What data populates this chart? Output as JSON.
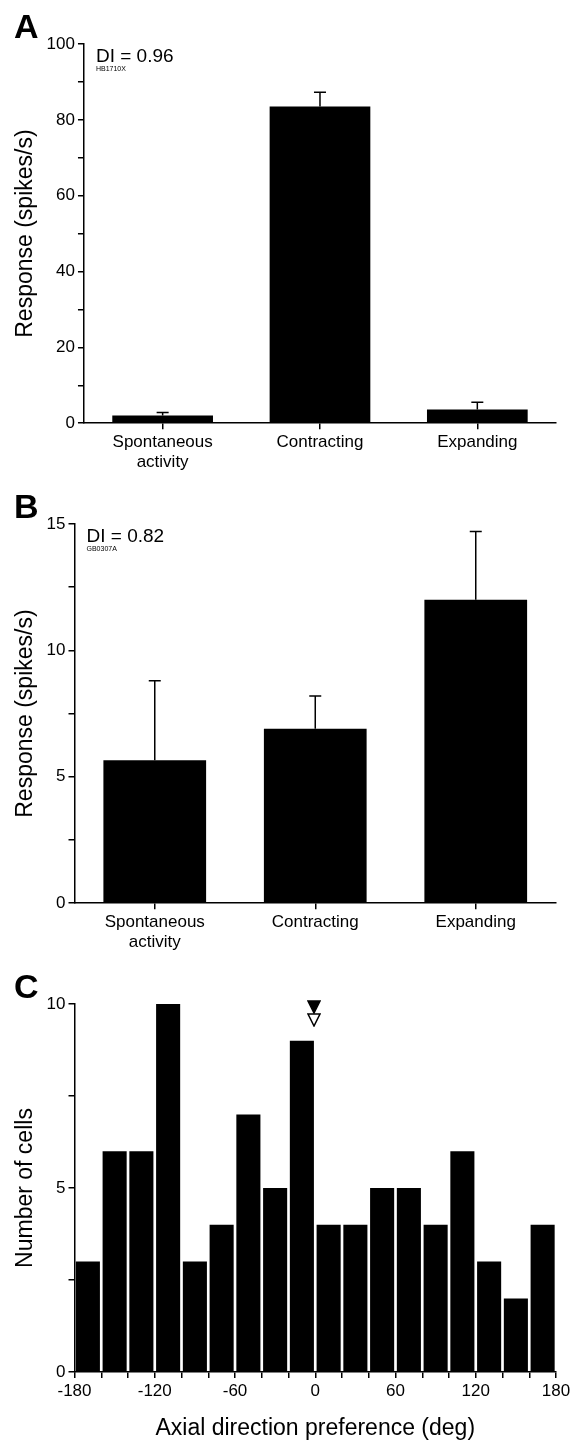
{
  "chart_data": [
    {
      "type": "bar",
      "categories": [
        "Spontaneous\nactivity",
        "Contracting",
        "Expanding"
      ],
      "values": [
        2.0,
        83.5,
        3.6
      ],
      "color": "#000000",
      "errors": [
        [
          2.0,
          2.8
        ],
        [
          83.5,
          87.3
        ],
        [
          3.6,
          5.5
        ]
      ],
      "ylabel": "Response (spikes/s)",
      "ylim": [
        0,
        100
      ],
      "yticks": [
        0,
        {
          "value": 10,
          "label": null
        },
        20,
        {
          "value": 30,
          "label": null
        },
        40,
        {
          "value": 50,
          "label": null
        },
        60,
        {
          "value": 70,
          "label": null
        },
        80,
        {
          "value": 90,
          "label": null
        },
        100
      ],
      "annotations": [
        "A",
        "DI = 0.96",
        "HB1710X"
      ],
      "grid": false,
      "legend": false
    },
    {
      "type": "bar",
      "categories": [
        "Spontaneous\nactivity",
        "Contracting",
        "Expanding"
      ],
      "values": [
        5.65,
        6.9,
        12.0
      ],
      "color": "#000000",
      "errors": [
        [
          5.65,
          8.8
        ],
        [
          6.9,
          8.2
        ],
        [
          12.0,
          14.7
        ]
      ],
      "ylabel": "Response (spikes/s)",
      "ylim": [
        0,
        15
      ],
      "yticks": [
        0,
        {
          "value": 2.5,
          "label": null
        },
        5,
        {
          "value": 7.5,
          "label": null
        },
        10,
        {
          "value": 12.5,
          "label": null
        },
        15
      ],
      "annotations": [
        "B",
        "DI = 0.82",
        "GB0307A"
      ],
      "grid": false,
      "legend": false
    },
    {
      "type": "histogram",
      "bins": [
        -180,
        -160,
        -140,
        -120,
        -100,
        -80,
        -60,
        -40,
        -20,
        0,
        20,
        40,
        60,
        80,
        100,
        120,
        140,
        160,
        180
      ],
      "values": [
        3,
        6,
        6,
        10,
        3,
        4,
        7,
        5,
        9,
        4,
        4,
        5,
        5,
        4,
        6,
        3,
        2,
        4
      ],
      "color": "#000000",
      "xlabel": "Axial direction preference (deg)",
      "ylabel": "Number of cells",
      "xlim": [
        -180,
        180
      ],
      "xticks": [
        -180,
        {
          "value": -160,
          "label": null
        },
        {
          "value": -140,
          "label": null
        },
        -120,
        {
          "value": -100,
          "label": null
        },
        {
          "value": -80,
          "label": null
        },
        -60,
        {
          "value": -40,
          "label": null
        },
        {
          "value": -20,
          "label": null
        },
        0,
        {
          "value": 20,
          "label": null
        },
        {
          "value": 40,
          "label": null
        },
        60,
        {
          "value": 80,
          "label": null
        },
        {
          "value": 100,
          "label": null
        },
        120,
        {
          "value": 140,
          "label": null
        },
        {
          "value": 160,
          "label": null
        },
        180
      ],
      "ylim": [
        0,
        10
      ],
      "yticks": [
        0,
        {
          "value": 2.5,
          "label": null
        },
        5,
        {
          "value": 7.5,
          "label": null
        },
        10
      ],
      "annotations": [
        "C"
      ],
      "grid": false,
      "legend": false
    }
  ]
}
